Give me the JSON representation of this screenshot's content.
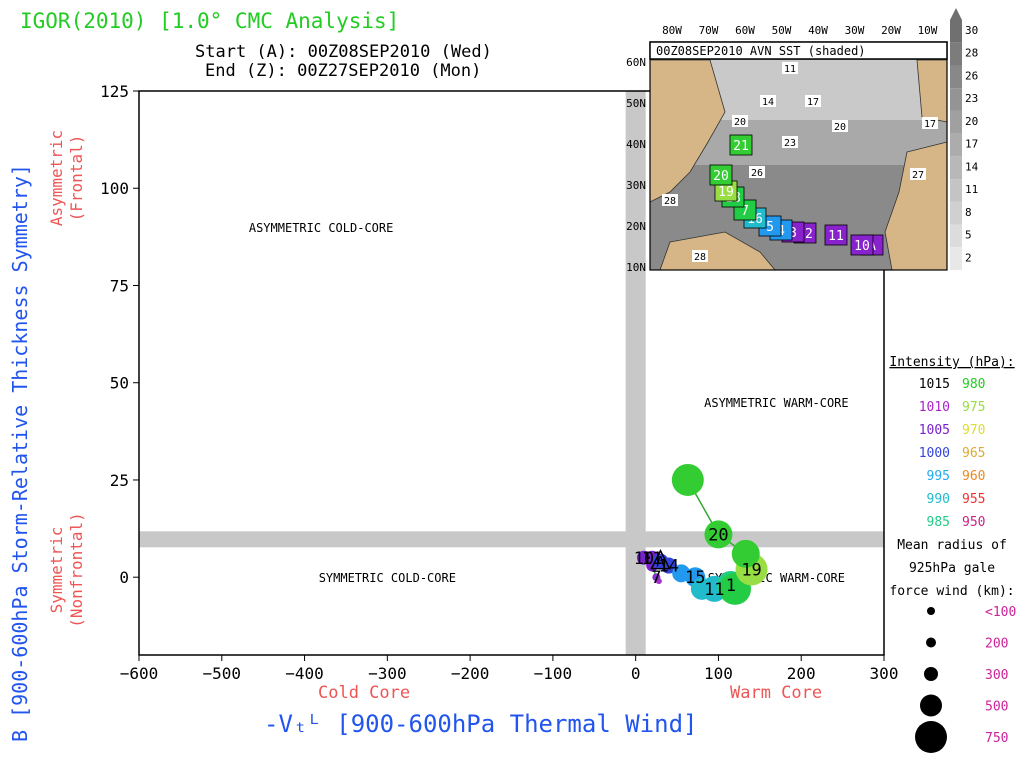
{
  "title": "IGOR(2010) [1.0° CMC Analysis]",
  "start_text": "Start (A): 00Z08SEP2010 (Wed)",
  "end_text": "End (Z): 00Z27SEP2010 (Mon)",
  "colors": {
    "title": "#22cc22",
    "axis_label": "#2255ee",
    "side_label": "#ee5555",
    "band": "#c8c8c8",
    "inset_border": "#000000"
  },
  "chart_data": {
    "type": "scatter",
    "xlabel": "-Vₜᴸ [900-600hPa Thermal Wind]",
    "ylabel": "B [900-600hPa Storm-Relative Thickness Symmetry]",
    "xlim": [
      -600,
      300
    ],
    "ylim": [
      -20,
      125
    ],
    "x_ticks": [
      -600,
      -500,
      -400,
      -300,
      -200,
      -100,
      0,
      100,
      200,
      300
    ],
    "y_ticks": [
      0,
      25,
      50,
      75,
      100,
      125
    ],
    "x_side_labels": {
      "left": "Cold Core",
      "right": "Warm Core"
    },
    "y_side_labels": {
      "top": "Asymmetric (Frontal)",
      "bottom": "Symmetric (Nonfrontal)"
    },
    "grid": false,
    "quadrants": [
      {
        "label": "ASYMMETRIC COLD-CORE",
        "x": -380,
        "y": 90
      },
      {
        "label": "ASYMMETRIC WARM-CORE",
        "x": 170,
        "y": 45
      },
      {
        "label": "SYMMETRIC COLD-CORE",
        "x": -300,
        "y": 0
      },
      {
        "label": "SYMMETRIC WARM-CORE",
        "x": 170,
        "y": 0
      }
    ],
    "band_thresholds": {
      "x": 0,
      "y": 10
    },
    "track": [
      {
        "x": 28,
        "y": -1,
        "color": "#aa33cc",
        "r": 3,
        "label": ""
      },
      {
        "x": 25,
        "y": 0,
        "color": "#8833cc",
        "r": 4,
        "label": "7"
      },
      {
        "x": 20,
        "y": 3,
        "color": "#7722cc",
        "r": 6,
        "label": ""
      },
      {
        "x": 10,
        "y": 5,
        "color": "#7722cc",
        "r": 7,
        "label": "10"
      },
      {
        "x": 20,
        "y": 5,
        "color": "#7722cc",
        "r": 7,
        "label": "11"
      },
      {
        "x": 30,
        "y": 4,
        "color": "#3344dd",
        "r": 8,
        "label": ""
      },
      {
        "x": 40,
        "y": 3,
        "color": "#3344dd",
        "r": 8,
        "label": "14"
      },
      {
        "x": 55,
        "y": 1,
        "color": "#2299ee",
        "r": 9,
        "label": ""
      },
      {
        "x": 72,
        "y": 0,
        "color": "#2299ee",
        "r": 10,
        "label": "15"
      },
      {
        "x": 80,
        "y": -3,
        "color": "#22bbcc",
        "r": 11,
        "label": ""
      },
      {
        "x": 95,
        "y": -3,
        "color": "#22bbcc",
        "r": 13,
        "label": "11"
      },
      {
        "x": 115,
        "y": -2,
        "color": "#22cc88",
        "r": 14,
        "label": "1"
      },
      {
        "x": 120,
        "y": -3,
        "color": "#22cc44",
        "r": 16,
        "label": ""
      },
      {
        "x": 140,
        "y": 2,
        "color": "#99dd44",
        "r": 16,
        "label": "19"
      },
      {
        "x": 133,
        "y": 6,
        "color": "#33cc33",
        "r": 14,
        "label": ""
      },
      {
        "x": 100,
        "y": 11,
        "color": "#33cc33",
        "r": 14,
        "label": "20"
      },
      {
        "x": 63,
        "y": 25,
        "color": "#33cc33",
        "r": 16,
        "label": ""
      }
    ],
    "track_labels": [
      "A"
    ],
    "inset": {
      "title": "00Z08SEP2010 AVN SST (shaded)",
      "lon_labels": [
        "80W",
        "70W",
        "60W",
        "50W",
        "40W",
        "30W",
        "20W",
        "10W"
      ],
      "lat_labels": [
        "60N",
        "50N",
        "40N",
        "30N",
        "20N",
        "10N"
      ],
      "sst_labels": [
        "11",
        "14",
        "17",
        "20",
        "23",
        "26",
        "20",
        "27",
        "17",
        "28",
        "28"
      ],
      "colorbar_ticks": [
        "30",
        "28",
        "26",
        "23",
        "20",
        "17",
        "14",
        "11",
        "8",
        "5",
        "2"
      ],
      "track_boxes": [
        {
          "label": "A",
          "color": "#8822cc"
        },
        {
          "label": "10",
          "color": "#8822cc"
        },
        {
          "label": "11",
          "color": "#8822cc"
        },
        {
          "label": "12",
          "color": "#8822cc"
        },
        {
          "label": "3",
          "color": "#8822cc"
        },
        {
          "label": "4",
          "color": "#2299ee"
        },
        {
          "label": "5",
          "color": "#2299ee"
        },
        {
          "label": "16",
          "color": "#22bbcc"
        },
        {
          "label": "7",
          "color": "#22cc44"
        },
        {
          "label": "18",
          "color": "#22cc44"
        },
        {
          "label": "19",
          "color": "#99dd44"
        },
        {
          "label": "20",
          "color": "#33cc33"
        },
        {
          "label": "21",
          "color": "#33cc33"
        }
      ]
    },
    "legend": {
      "intensity_title": "Intensity (hPa):",
      "intensity": [
        {
          "left": "1015",
          "left_color": "#000000",
          "right": "980",
          "right_color": "#22cc22"
        },
        {
          "left": "1010",
          "left_color": "#aa22cc",
          "right": "975",
          "right_color": "#99dd44"
        },
        {
          "left": "1005",
          "left_color": "#7722cc",
          "right": "970",
          "right_color": "#dddd33"
        },
        {
          "left": "1000",
          "left_color": "#3344dd",
          "right": "965",
          "right_color": "#ddaa33"
        },
        {
          "left": "995",
          "left_color": "#22aaee",
          "right": "960",
          "right_color": "#ee8822"
        },
        {
          "left": "990",
          "left_color": "#22bbcc",
          "right": "955",
          "right_color": "#ee3333"
        },
        {
          "left": "985",
          "left_color": "#22cc88",
          "right": "950",
          "right_color": "#cc2288"
        }
      ],
      "radius_title_lines": [
        "Mean radius of",
        "925hPa gale",
        "force wind (km):"
      ],
      "radius": [
        {
          "label": "<100",
          "r": 4
        },
        {
          "label": "200",
          "r": 5
        },
        {
          "label": "300",
          "r": 7
        },
        {
          "label": "500",
          "r": 11
        },
        {
          "label": "750",
          "r": 16
        }
      ],
      "radius_color": "#cc2299"
    }
  }
}
